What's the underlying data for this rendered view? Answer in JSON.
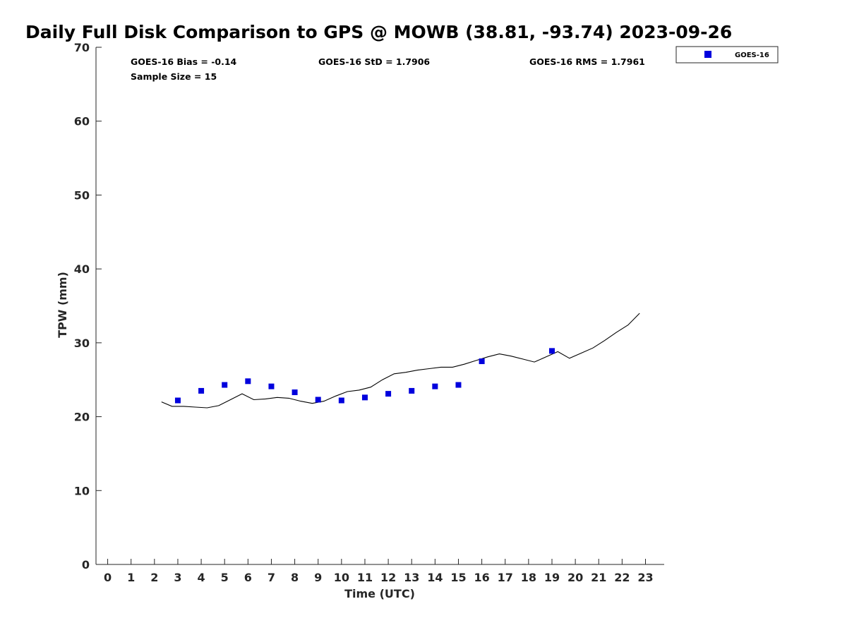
{
  "chart_data": {
    "type": "scatter",
    "title": "Daily Full Disk Comparison to GPS @ MOWB (38.81, -93.74) 2023-09-26",
    "xlabel": "Time (UTC)",
    "ylabel": "TPW (mm)",
    "xlim": [
      -0.5,
      23.8
    ],
    "ylim": [
      0,
      70
    ],
    "x_ticks": [
      0,
      1,
      2,
      3,
      4,
      5,
      6,
      7,
      8,
      9,
      10,
      11,
      12,
      13,
      14,
      15,
      16,
      17,
      18,
      19,
      20,
      21,
      22,
      23
    ],
    "y_ticks": [
      0,
      10,
      20,
      30,
      40,
      50,
      60,
      70
    ],
    "grid": false,
    "legend": {
      "position": "outside-top-right",
      "entries": [
        "GOES-16"
      ]
    },
    "stats": {
      "bias": "GOES-16 Bias = -0.14",
      "sample_size": "Sample Size = 15",
      "std": "GOES-16 StD = 1.7906",
      "rms": "GOES-16 RMS = 1.7961"
    },
    "series": [
      {
        "name": "GOES-16",
        "kind": "scatter",
        "color": "#0000dd",
        "x": [
          3,
          4,
          5,
          6,
          7,
          8,
          9,
          10,
          11,
          12,
          13,
          14,
          15,
          16,
          19
        ],
        "y": [
          22.2,
          23.5,
          24.3,
          24.8,
          24.1,
          23.3,
          22.3,
          22.2,
          22.6,
          23.1,
          23.5,
          24.1,
          24.3,
          27.5,
          28.9
        ]
      },
      {
        "kind": "line",
        "color": "#000000",
        "x": [
          2.3,
          2.75,
          3.25,
          3.75,
          4.25,
          4.75,
          5.25,
          5.75,
          6.25,
          6.75,
          7.25,
          7.75,
          8.25,
          8.75,
          9.25,
          9.75,
          10.25,
          10.75,
          11.25,
          11.75,
          12.25,
          12.75,
          13.25,
          13.75,
          14.25,
          14.75,
          15.25,
          15.75,
          16.25,
          16.75,
          17.25,
          17.75,
          18.25,
          18.75,
          19.25,
          19.75,
          20.25,
          20.75,
          21.25,
          21.75,
          22.25,
          22.75
        ],
        "y": [
          22.0,
          21.4,
          21.4,
          21.3,
          21.2,
          21.5,
          22.3,
          23.1,
          22.3,
          22.4,
          22.6,
          22.5,
          22.1,
          21.8,
          22.1,
          22.8,
          23.4,
          23.6,
          24.0,
          25.0,
          25.8,
          26.0,
          26.3,
          26.5,
          26.7,
          26.7,
          27.1,
          27.6,
          28.1,
          28.5,
          28.2,
          27.8,
          27.4,
          28.1,
          28.8,
          27.9,
          28.6,
          29.3,
          30.3,
          31.4,
          32.4,
          34.0
        ]
      }
    ]
  }
}
